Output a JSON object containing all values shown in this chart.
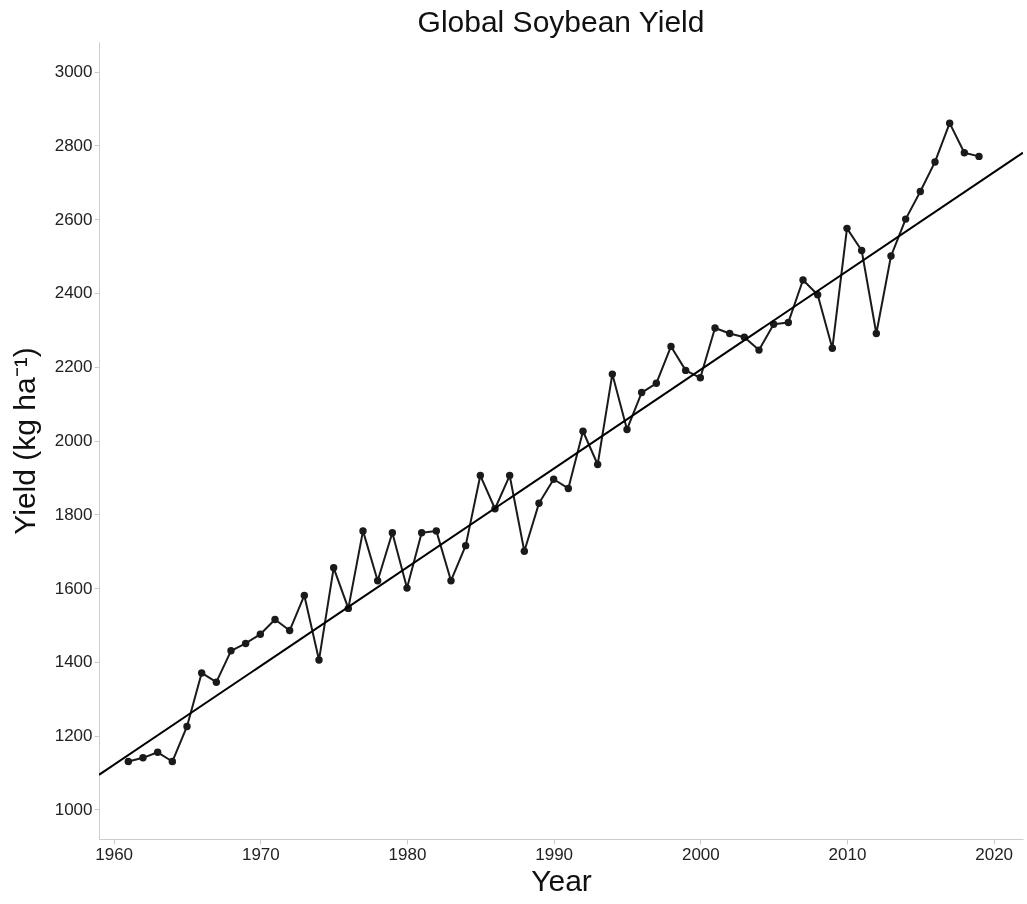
{
  "chart_data": {
    "type": "line",
    "title": "Global Soybean Yield",
    "xlabel": "Year",
    "ylabel": "Yield (kg ha⁻¹)",
    "x": [
      1961,
      1962,
      1963,
      1964,
      1965,
      1966,
      1967,
      1968,
      1969,
      1970,
      1971,
      1972,
      1973,
      1974,
      1975,
      1976,
      1977,
      1978,
      1979,
      1980,
      1981,
      1982,
      1983,
      1984,
      1985,
      1986,
      1987,
      1988,
      1989,
      1990,
      1991,
      1992,
      1993,
      1994,
      1995,
      1996,
      1997,
      1998,
      1999,
      2000,
      2001,
      2002,
      2003,
      2004,
      2005,
      2006,
      2007,
      2008,
      2009,
      2010,
      2011,
      2012,
      2013,
      2014,
      2015,
      2016,
      2017,
      2018,
      2019
    ],
    "series": [
      {
        "color": "#1a1a1a",
        "marker": "circle",
        "values": [
          1130,
          1140,
          1155,
          1130,
          1225,
          1370,
          1345,
          1430,
          1450,
          1475,
          1515,
          1485,
          1580,
          1405,
          1655,
          1545,
          1755,
          1620,
          1750,
          1600,
          1750,
          1755,
          1620,
          1715,
          1905,
          1815,
          1905,
          1700,
          1830,
          1895,
          1870,
          2025,
          1935,
          2180,
          2030,
          2130,
          2155,
          2255,
          2190,
          2170,
          2305,
          2290,
          2280,
          2245,
          2315,
          2320,
          2435,
          2395,
          2250,
          2575,
          2515,
          2290,
          2500,
          2600,
          2675,
          2755,
          2860,
          2780,
          2770
        ]
      },
      {
        "type": "line",
        "color": "#000000",
        "marker": "none",
        "x": [
          1959,
          2022
        ],
        "values": [
          1094,
          2780
        ]
      }
    ],
    "xlim": [
      1959,
      2022
    ],
    "xticks": [
      1960,
      1970,
      1980,
      1990,
      2000,
      2010,
      2020
    ],
    "ylim": [
      920,
      3080
    ],
    "yticks": [
      1000,
      1200,
      1400,
      1600,
      1800,
      2000,
      2200,
      2400,
      2600,
      2800,
      3000
    ],
    "grid": false,
    "legend": false
  }
}
